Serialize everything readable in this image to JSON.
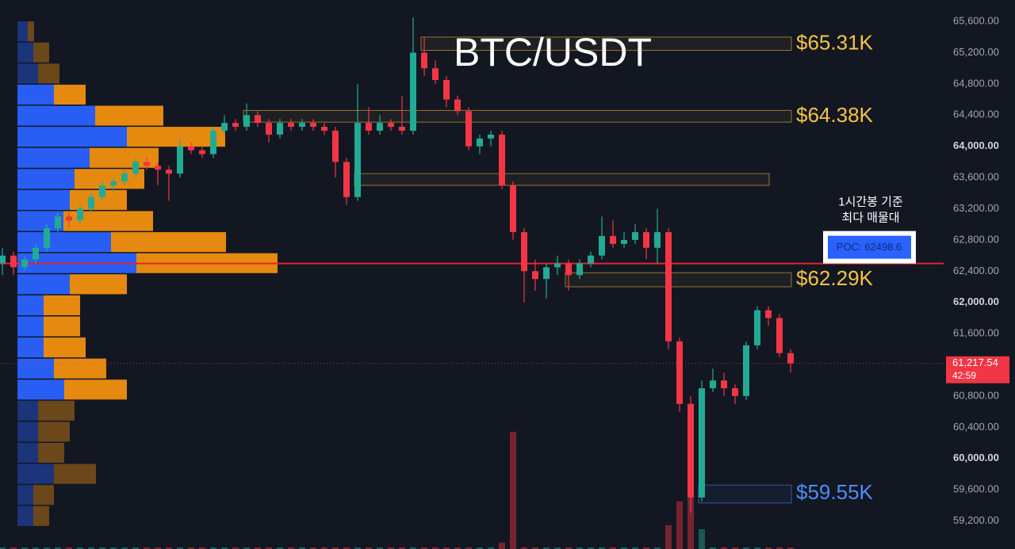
{
  "chart_data": {
    "type": "candlestick",
    "title": "BTC/USDT",
    "ylim": [
      58840,
      65875
    ],
    "yticks": [
      {
        "value": 65600,
        "label": "65,600.00"
      },
      {
        "value": 65200,
        "label": "65,200.00"
      },
      {
        "value": 64800,
        "label": "64,800.00"
      },
      {
        "value": 64400,
        "label": "64,400.00"
      },
      {
        "value": 64000,
        "label": "64,000.00"
      },
      {
        "value": 63600,
        "label": "63,600.00"
      },
      {
        "value": 63200,
        "label": "63,200.00"
      },
      {
        "value": 62800,
        "label": "62,800.00"
      },
      {
        "value": 62400,
        "label": "62,400.00"
      },
      {
        "value": 62000,
        "label": "62,000.00"
      },
      {
        "value": 61600,
        "label": "61,600.00"
      },
      {
        "value": 60800,
        "label": "60,800.00"
      },
      {
        "value": 60400,
        "label": "60,400.00"
      },
      {
        "value": 60000,
        "label": "60,000.00"
      },
      {
        "value": 59600,
        "label": "59,600.00"
      },
      {
        "value": 59200,
        "label": "59,200.00"
      }
    ],
    "up_color": "#22ab94",
    "down_color": "#f23645",
    "ohlc": [
      [
        62500,
        62700,
        62350,
        62600
      ],
      [
        62600,
        62650,
        62350,
        62450
      ],
      [
        62450,
        62600,
        62400,
        62550
      ],
      [
        62550,
        62750,
        62500,
        62700
      ],
      [
        62700,
        63000,
        62650,
        62950
      ],
      [
        62950,
        63150,
        62900,
        63100
      ],
      [
        63100,
        63150,
        62950,
        63050
      ],
      [
        63050,
        63250,
        63000,
        63200
      ],
      [
        63200,
        63400,
        63150,
        63350
      ],
      [
        63350,
        63550,
        63300,
        63500
      ],
      [
        63500,
        63600,
        63400,
        63550
      ],
      [
        63550,
        63700,
        63500,
        63650
      ],
      [
        63650,
        63850,
        63600,
        63800
      ],
      [
        63800,
        63850,
        63700,
        63750
      ],
      [
        63750,
        63800,
        63500,
        63700
      ],
      [
        63700,
        63750,
        63300,
        63650
      ],
      [
        63650,
        64100,
        63600,
        64000
      ],
      [
        64000,
        64050,
        63900,
        63950
      ],
      [
        63950,
        64000,
        63850,
        63900
      ],
      [
        63900,
        64250,
        63850,
        64200
      ],
      [
        64200,
        64400,
        64150,
        64300
      ],
      [
        64300,
        64350,
        64200,
        64250
      ],
      [
        64250,
        64550,
        64200,
        64400
      ],
      [
        64400,
        64450,
        64250,
        64300
      ],
      [
        64300,
        64350,
        64050,
        64150
      ],
      [
        64150,
        64350,
        64100,
        64300
      ],
      [
        64300,
        64350,
        64200,
        64250
      ],
      [
        64250,
        64350,
        64200,
        64300
      ],
      [
        64300,
        64350,
        64200,
        64250
      ],
      [
        64250,
        64300,
        64150,
        64200
      ],
      [
        64200,
        64250,
        63600,
        63800
      ],
      [
        63800,
        63850,
        63250,
        63350
      ],
      [
        63350,
        64800,
        63300,
        64300
      ],
      [
        64300,
        64500,
        64150,
        64200
      ],
      [
        64200,
        64400,
        64150,
        64300
      ],
      [
        64300,
        64350,
        64200,
        64250
      ],
      [
        64250,
        64650,
        64150,
        64200
      ],
      [
        64200,
        65650,
        64150,
        65200
      ],
      [
        65200,
        65400,
        64900,
        65000
      ],
      [
        65000,
        65100,
        64800,
        64850
      ],
      [
        64850,
        64900,
        64500,
        64600
      ],
      [
        64600,
        64650,
        64400,
        64450
      ],
      [
        64450,
        64500,
        63950,
        64000
      ],
      [
        64000,
        64150,
        63900,
        64100
      ],
      [
        64100,
        64200,
        64000,
        64150
      ],
      [
        64150,
        64200,
        63450,
        63500
      ],
      [
        63500,
        63550,
        62800,
        62900
      ],
      [
        62900,
        62950,
        62000,
        62400
      ],
      [
        62400,
        62550,
        62150,
        62300
      ],
      [
        62300,
        62500,
        62050,
        62450
      ],
      [
        62450,
        62600,
        62350,
        62500
      ],
      [
        62500,
        62550,
        62150,
        62350
      ],
      [
        62350,
        62550,
        62300,
        62500
      ],
      [
        62500,
        62650,
        62450,
        62600
      ],
      [
        62600,
        63100,
        62550,
        62850
      ],
      [
        62850,
        63050,
        62700,
        62750
      ],
      [
        62750,
        62900,
        62700,
        62800
      ],
      [
        62800,
        63000,
        62750,
        62900
      ],
      [
        62900,
        62950,
        62550,
        62700
      ],
      [
        62700,
        63200,
        62500,
        62900
      ],
      [
        62900,
        62950,
        61400,
        61500
      ],
      [
        61500,
        61550,
        60600,
        60700
      ],
      [
        60700,
        60800,
        59300,
        59500
      ],
      [
        59500,
        61000,
        59450,
        60900
      ],
      [
        60900,
        61150,
        60850,
        61000
      ],
      [
        61000,
        61100,
        60800,
        60900
      ],
      [
        60900,
        60950,
        60700,
        60800
      ],
      [
        60800,
        61500,
        60750,
        61450
      ],
      [
        61450,
        61950,
        61400,
        61900
      ],
      [
        61900,
        61950,
        61700,
        61800
      ],
      [
        61800,
        61850,
        61300,
        61350
      ],
      [
        61350,
        61400,
        61100,
        61217.54
      ]
    ],
    "volume": [
      2,
      2,
      2,
      2,
      2,
      2,
      2,
      2,
      2,
      2,
      2,
      2,
      2,
      2,
      2,
      2,
      2,
      2,
      2,
      2,
      2,
      2,
      2,
      2,
      2,
      2,
      2,
      2,
      2,
      2,
      2,
      2,
      2,
      2,
      2,
      2,
      2,
      2,
      2,
      2,
      2,
      2,
      2,
      2,
      2,
      8,
      148,
      2,
      2,
      2,
      2,
      2,
      2,
      2,
      2,
      2,
      2,
      2,
      2,
      2,
      30,
      60,
      70,
      25,
      2,
      2,
      2,
      2,
      2,
      2,
      2,
      2
    ],
    "profile": {
      "bins": [
        65600,
        65330,
        65060,
        64790,
        64520,
        64250,
        63980,
        63710,
        63440,
        63170,
        62900,
        62630,
        62360,
        62090,
        61820,
        61550,
        61280,
        61010,
        60740,
        60470,
        60200,
        59930,
        59660,
        59390,
        59120
      ],
      "buy": [
        13,
        20,
        26,
        46,
        98,
        138,
        91,
        72,
        66,
        58,
        118,
        150,
        66,
        33,
        33,
        33,
        46,
        59,
        26,
        26,
        26,
        46,
        20,
        20
      ],
      "sell": [
        8,
        20,
        27,
        40,
        86,
        124,
        87,
        88,
        72,
        113,
        145,
        178,
        72,
        46,
        46,
        53,
        66,
        79,
        46,
        40,
        33,
        53,
        26,
        20
      ],
      "buy_color": "#2962ff",
      "sell_color": "#f0900f",
      "value_area": {
        "high": 64790,
        "low": 60740
      }
    },
    "zones": [
      {
        "label": "$65.31K",
        "value": 65310,
        "top": 65400,
        "bottom": 65230,
        "from": 38,
        "to": 71,
        "color": "#f6c343"
      },
      {
        "label": "$64.38K",
        "value": 64380,
        "top": 64460,
        "bottom": 64310,
        "from": 22,
        "to": 71,
        "color": "#f6c343"
      },
      {
        "top": 63650,
        "bottom": 63500,
        "from": 32,
        "to": 69,
        "color": "#f6c343"
      },
      {
        "label": "$62.29K",
        "value": 62290,
        "top": 62380,
        "bottom": 62200,
        "from": 51,
        "to": 71,
        "color": "#f6c343"
      },
      {
        "label": "$59.55K",
        "value": 59550,
        "top": 59660,
        "bottom": 59430,
        "from": 63,
        "to": 71,
        "color": "#4c8df6"
      }
    ],
    "poc": {
      "value": 62498.6,
      "label": "POC: 62498.6",
      "color": "#e0262e"
    },
    "annotation": [
      "1시간봉 기준",
      "최다 매물대"
    ],
    "last_price": {
      "value": 61217.54,
      "label": "61,217.54",
      "countdown": "42:59"
    }
  }
}
